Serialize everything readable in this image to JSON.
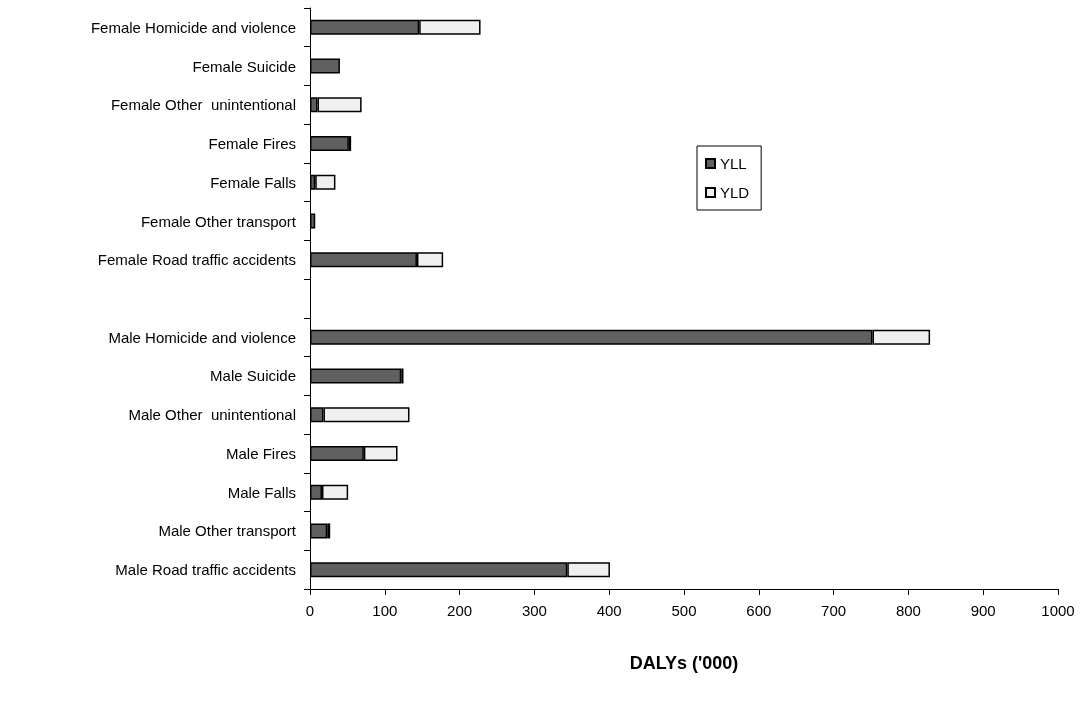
{
  "chart_data": {
    "type": "bar",
    "orientation": "horizontal",
    "stacked": true,
    "categories": [
      "Female Homicide and violence",
      "Female Suicide",
      "Female Other  unintentional",
      "Female Fires",
      "Female Falls",
      "Female Other transport",
      "Female Road traffic accidents",
      null,
      "Male Homicide and violence",
      "Male Suicide",
      "Male Other  unintentional",
      "Male Fires",
      "Male Falls",
      "Male Other transport",
      "Male Road traffic accidents"
    ],
    "series": [
      {
        "name": "YLL",
        "color": "#606060",
        "values": [
          146,
          40,
          10,
          52,
          7,
          7,
          143,
          null,
          752,
          122,
          18,
          72,
          16,
          23,
          344
        ]
      },
      {
        "name": "YLD",
        "color": "#f0f0f0",
        "values": [
          82,
          null,
          59,
          3,
          27,
          null,
          35,
          null,
          77,
          3,
          115,
          45,
          35,
          4,
          57
        ]
      }
    ],
    "xlabel": "DALYs ('000)",
    "xlim": [
      0,
      1000
    ],
    "xticks": [
      0,
      100,
      200,
      300,
      400,
      500,
      600,
      700,
      800,
      900,
      1000
    ],
    "grid": false,
    "legend": "right"
  }
}
